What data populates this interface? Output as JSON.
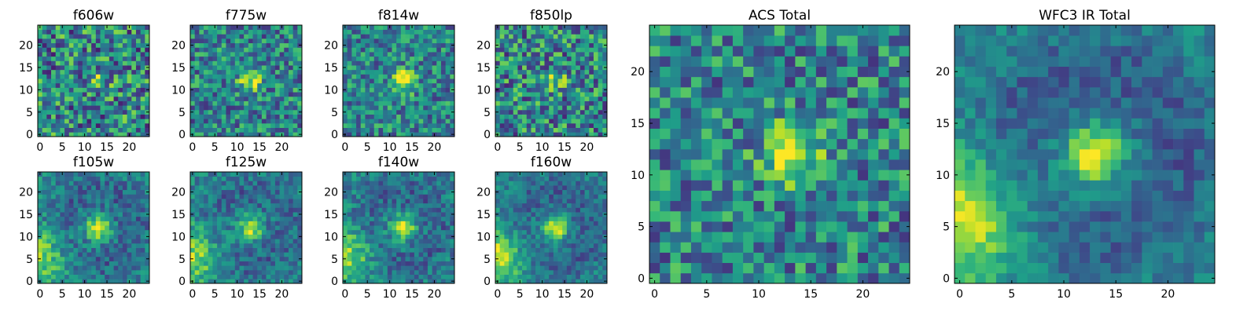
{
  "chart_data": {
    "type": "heatmap",
    "colormap": "viridis",
    "grid_size": 25,
    "panels": [
      {
        "id": "f606w",
        "title": "f606w",
        "xticks": [
          "0",
          "5",
          "10",
          "15",
          "20"
        ],
        "yticks": [
          "0",
          "5",
          "10",
          "15",
          "20"
        ],
        "source_amp": 0.25,
        "noise": 0.75,
        "ring": 0.0,
        "corner": 0.0
      },
      {
        "id": "f775w",
        "title": "f775w",
        "xticks": [
          "0",
          "5",
          "10",
          "15",
          "20"
        ],
        "yticks": [
          "0",
          "5",
          "10",
          "15",
          "20"
        ],
        "source_amp": 0.45,
        "noise": 0.6,
        "ring": 0.0,
        "corner": 0.0
      },
      {
        "id": "f814w",
        "title": "f814w",
        "xticks": [
          "0",
          "5",
          "10",
          "15",
          "20"
        ],
        "yticks": [
          "0",
          "5",
          "10",
          "15",
          "20"
        ],
        "source_amp": 0.6,
        "noise": 0.55,
        "ring": 0.0,
        "corner": 0.0
      },
      {
        "id": "f850lp",
        "title": "f850lp",
        "xticks": [
          "0",
          "5",
          "10",
          "15",
          "20"
        ],
        "yticks": [
          "0",
          "5",
          "10",
          "15",
          "20"
        ],
        "source_amp": 0.3,
        "noise": 0.7,
        "ring": 0.0,
        "corner": 0.0
      },
      {
        "id": "f105w",
        "title": "f105w",
        "xticks": [
          "0",
          "5",
          "10",
          "15",
          "20"
        ],
        "yticks": [
          "0",
          "5",
          "10",
          "15",
          "20"
        ],
        "source_amp": 0.55,
        "noise": 0.35,
        "ring": 0.35,
        "corner": 0.35
      },
      {
        "id": "f125w",
        "title": "f125w",
        "xticks": [
          "0",
          "5",
          "10",
          "15",
          "20"
        ],
        "yticks": [
          "0",
          "5",
          "10",
          "15",
          "20"
        ],
        "source_amp": 0.5,
        "noise": 0.35,
        "ring": 0.35,
        "corner": 0.4
      },
      {
        "id": "f140w",
        "title": "f140w",
        "xticks": [
          "0",
          "5",
          "10",
          "15",
          "20"
        ],
        "yticks": [
          "0",
          "5",
          "10",
          "15",
          "20"
        ],
        "source_amp": 0.55,
        "noise": 0.35,
        "ring": 0.35,
        "corner": 0.4
      },
      {
        "id": "f160w",
        "title": "f160w",
        "xticks": [
          "0",
          "5",
          "10",
          "15",
          "20"
        ],
        "yticks": [
          "0",
          "5",
          "10",
          "15",
          "20"
        ],
        "source_amp": 0.55,
        "noise": 0.3,
        "ring": 0.4,
        "corner": 0.45
      },
      {
        "id": "acs-total",
        "title": "ACS Total",
        "xticks": [
          "0",
          "5",
          "10",
          "15",
          "20"
        ],
        "yticks": [
          "0",
          "5",
          "10",
          "15",
          "20"
        ],
        "source_amp": 0.7,
        "noise": 0.6,
        "ring": 0.0,
        "corner": 0.0
      },
      {
        "id": "wfc3-ir-total",
        "title": "WFC3 IR Total",
        "xticks": [
          "0",
          "5",
          "10",
          "15",
          "20"
        ],
        "yticks": [
          "0",
          "5",
          "10",
          "15",
          "20"
        ],
        "source_amp": 0.6,
        "noise": 0.25,
        "ring": 0.45,
        "corner": 0.5
      }
    ],
    "source_center": {
      "x": 13,
      "y": 12
    },
    "xlim": [
      -0.5,
      24.5
    ],
    "ylim": [
      -0.5,
      24.5
    ]
  }
}
